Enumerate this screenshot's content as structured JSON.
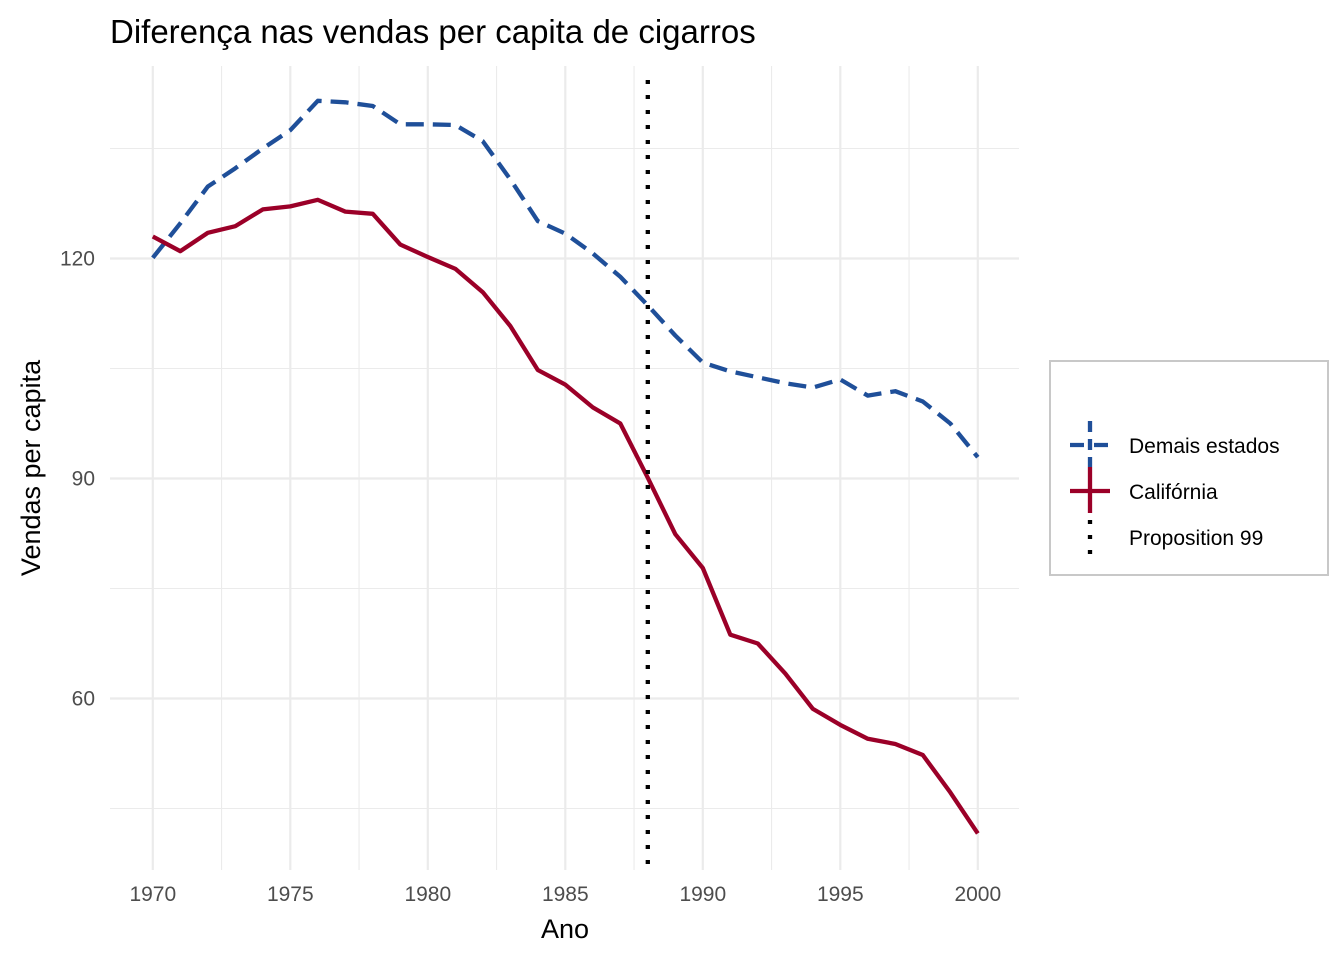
{
  "chart_data": {
    "type": "line",
    "title": "Diferença nas vendas per capita de cigarros",
    "xlabel": "Ano",
    "ylabel": "Vendas per capita",
    "xlim": [
      1970,
      2000
    ],
    "ylim": [
      42,
      144
    ],
    "x_ticks": [
      1970,
      1975,
      1980,
      1985,
      1990,
      1995,
      2000
    ],
    "y_ticks": [
      60,
      90,
      120
    ],
    "grid": true,
    "legend_position": "right",
    "x": [
      1970,
      1971,
      1972,
      1973,
      1974,
      1975,
      1976,
      1977,
      1978,
      1979,
      1980,
      1981,
      1982,
      1983,
      1984,
      1985,
      1986,
      1987,
      1988,
      1989,
      1990,
      1991,
      1992,
      1993,
      1994,
      1995,
      1996,
      1997,
      1998,
      1999,
      2000
    ],
    "series": [
      {
        "name": "Demais estados",
        "color": "#1f4f99",
        "style": "dashed",
        "values": [
          120.1,
          124.8,
          129.8,
          132.3,
          135.0,
          137.5,
          141.5,
          141.3,
          140.8,
          138.3,
          138.3,
          138.2,
          136.0,
          130.8,
          125.1,
          123.4,
          120.7,
          117.5,
          113.6,
          109.5,
          105.8,
          104.6,
          103.8,
          103.0,
          102.4,
          103.5,
          101.3,
          101.9,
          100.5,
          97.5,
          92.9
        ]
      },
      {
        "name": "Califórnia",
        "color": "#9b0028",
        "style": "solid",
        "values": [
          123.0,
          121.0,
          123.5,
          124.4,
          126.7,
          127.1,
          128.0,
          126.4,
          126.1,
          121.9,
          120.2,
          118.6,
          115.4,
          110.8,
          104.8,
          102.8,
          99.7,
          97.5,
          90.1,
          82.4,
          77.8,
          68.7,
          67.5,
          63.4,
          58.6,
          56.4,
          54.5,
          53.8,
          52.3,
          47.2,
          41.6
        ]
      }
    ],
    "vlines": [
      {
        "name": "Proposition 99",
        "x": 1988,
        "color": "#000000",
        "style": "dotted"
      }
    ]
  }
}
